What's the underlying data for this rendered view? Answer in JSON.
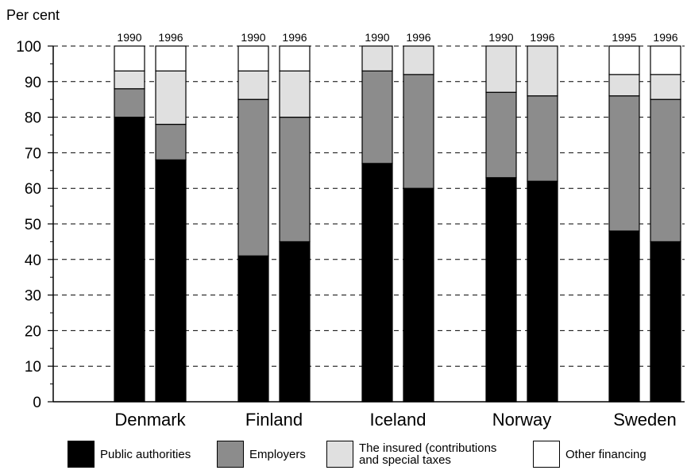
{
  "chart_data": {
    "type": "bar",
    "stacked": true,
    "ylabel": "Per cent",
    "ylim": [
      0,
      100
    ],
    "yticks": [
      0,
      10,
      20,
      30,
      40,
      50,
      60,
      70,
      80,
      90,
      100
    ],
    "grid": "horizontal dashed",
    "legend_position": "bottom",
    "groups": [
      {
        "country": "Denmark",
        "bars": [
          {
            "year": "1990",
            "public": 80,
            "employers": 8,
            "insured": 5,
            "other": 7
          },
          {
            "year": "1996",
            "public": 68,
            "employers": 10,
            "insured": 15,
            "other": 7
          }
        ]
      },
      {
        "country": "Finland",
        "bars": [
          {
            "year": "1990",
            "public": 41,
            "employers": 44,
            "insured": 8,
            "other": 7
          },
          {
            "year": "1996",
            "public": 45,
            "employers": 35,
            "insured": 13,
            "other": 7
          }
        ]
      },
      {
        "country": "Iceland",
        "bars": [
          {
            "year": "1990",
            "public": 67,
            "employers": 26,
            "insured": 7,
            "other": 0
          },
          {
            "year": "1996",
            "public": 60,
            "employers": 32,
            "insured": 8,
            "other": 0
          }
        ]
      },
      {
        "country": "Norway",
        "bars": [
          {
            "year": "1990",
            "public": 63,
            "employers": 24,
            "insured": 13,
            "other": 0
          },
          {
            "year": "1996",
            "public": 62,
            "employers": 24,
            "insured": 14,
            "other": 0
          }
        ]
      },
      {
        "country": "Sweden",
        "bars": [
          {
            "year": "1995",
            "public": 48,
            "employers": 38,
            "insured": 6,
            "other": 8
          },
          {
            "year": "1996",
            "public": 45,
            "employers": 40,
            "insured": 7,
            "other": 8
          }
        ]
      }
    ],
    "series": [
      {
        "key": "public",
        "name": "Public authorities",
        "color": "#000000"
      },
      {
        "key": "employers",
        "name": "Employers",
        "color": "#8c8c8c"
      },
      {
        "key": "insured",
        "name": "The insured (contributions and special taxes",
        "name_lines": [
          "The insured (contributions",
          "and special taxes"
        ],
        "color": "#e0e0e0"
      },
      {
        "key": "other",
        "name": "Other financing",
        "color": "#ffffff"
      }
    ]
  }
}
